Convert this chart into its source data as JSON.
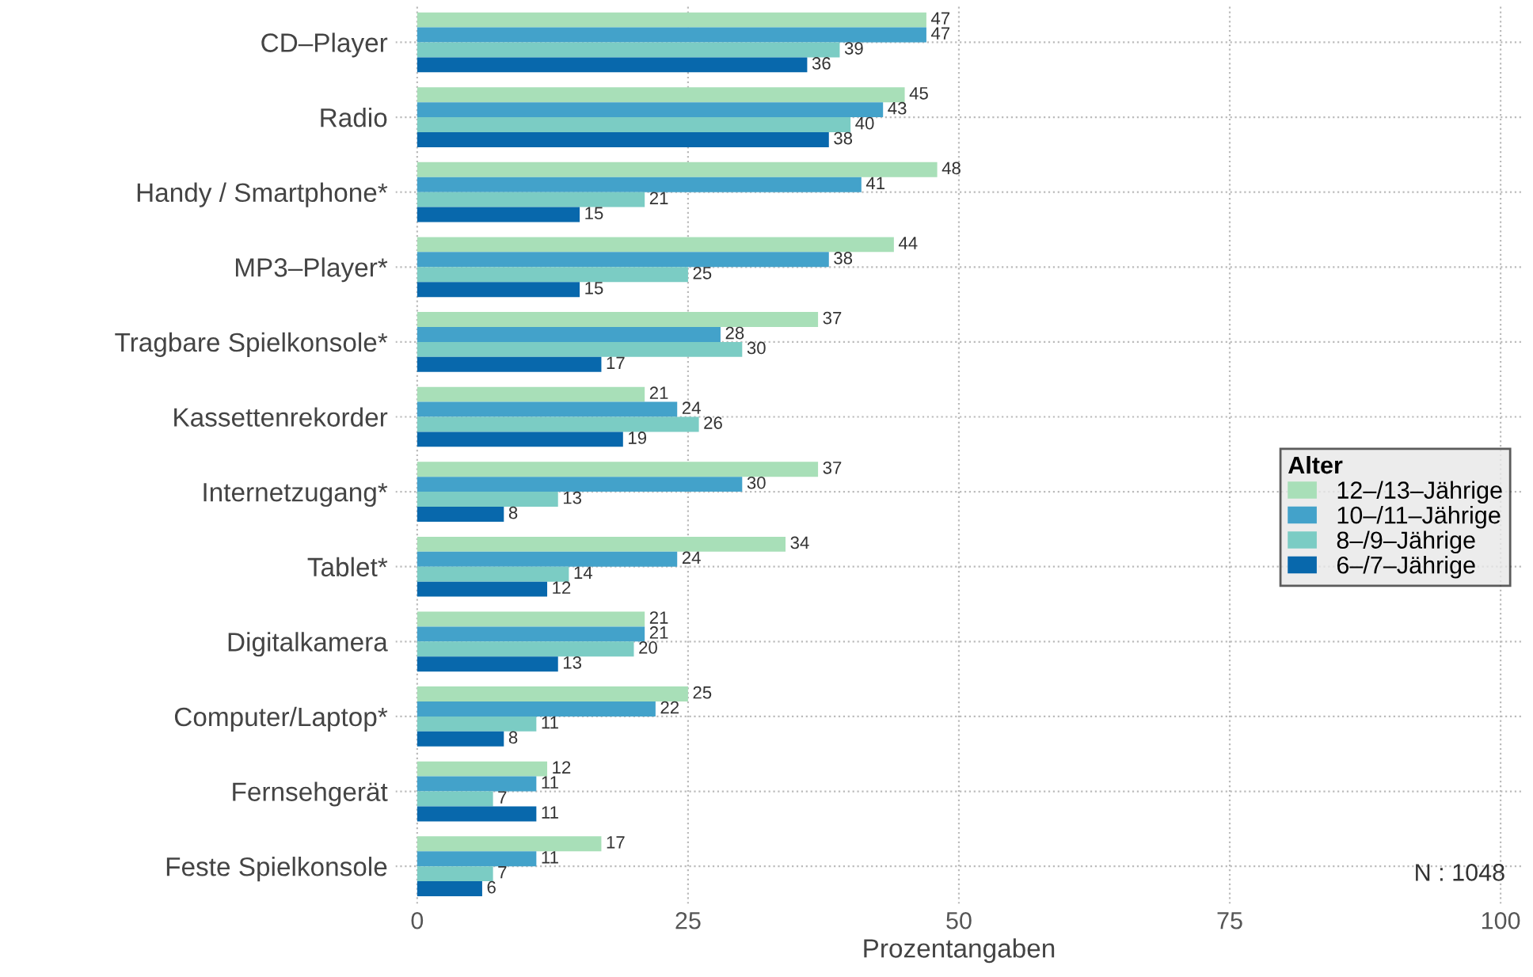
{
  "chart_data": {
    "type": "bar",
    "orientation": "horizontal",
    "xlabel": "Prozentangaben",
    "categories": [
      "CD–Player",
      "Radio",
      "Handy / Smartphone*",
      "MP3–Player*",
      "Tragbare Spielkonsole*",
      "Kassettenrekorder",
      "Internetzugang*",
      "Tablet*",
      "Digitalkamera",
      "Computer/Laptop*",
      "Fernsehgerät",
      "Feste Spielkonsole"
    ],
    "series": [
      {
        "name": "12–/13–Jährige",
        "color": "#a8dfb8",
        "values": [
          47,
          45,
          48,
          44,
          37,
          21,
          37,
          34,
          21,
          25,
          12,
          17
        ]
      },
      {
        "name": "10–/11–Jährige",
        "color": "#43a2ca",
        "values": [
          47,
          43,
          41,
          38,
          28,
          24,
          30,
          24,
          21,
          22,
          11,
          11
        ]
      },
      {
        "name": "8–/9–Jährige",
        "color": "#7bccc4",
        "values": [
          39,
          40,
          21,
          25,
          30,
          26,
          13,
          14,
          20,
          11,
          7,
          7
        ]
      },
      {
        "name": "6–/7–Jährige",
        "color": "#0868ac",
        "values": [
          36,
          38,
          15,
          15,
          17,
          19,
          8,
          12,
          13,
          8,
          11,
          6
        ]
      }
    ],
    "legend_title": "Alter",
    "legend": "right",
    "data_labels": true,
    "grid": true,
    "xlim": [
      -2,
      102
    ],
    "xticks": [
      0,
      25,
      50,
      75,
      100
    ],
    "annotations": [
      "N : 1048"
    ]
  }
}
